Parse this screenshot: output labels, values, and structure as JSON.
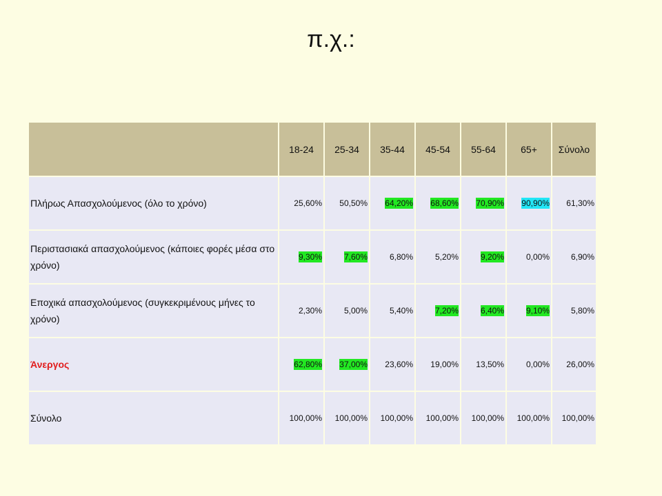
{
  "title": "π.χ.:",
  "colors": {
    "background": "#fdfde3",
    "header": "#c8bf99",
    "row": "#e8e8f4",
    "highlight_green": "#22e822",
    "highlight_cyan": "#22e6f6",
    "label_red": "#e11d1d"
  },
  "table": {
    "headers": [
      "",
      "18-24",
      "25-34",
      "35-44",
      "45-54",
      "55-64",
      "65+",
      "Σύνολο"
    ],
    "rows": [
      {
        "label": "Πλήρως Απασχολούμενος  (όλο το χρόνο)",
        "values": [
          "25,60%",
          "50,50%",
          "64,20%",
          "68,60%",
          "70,90%",
          "90,90%",
          "61,30%"
        ],
        "highlights": [
          "",
          "",
          "green",
          "green",
          "green",
          "cyan",
          ""
        ]
      },
      {
        "label": "Περιστασιακά απασχολούμενος (κάποιες φορές μέσα στο χρόνο)",
        "values": [
          "9,30%",
          "7,60%",
          "6,80%",
          "5,20%",
          "9,20%",
          "0,00%",
          "6,90%"
        ],
        "highlights": [
          "green",
          "green",
          "",
          "",
          "green",
          "",
          ""
        ]
      },
      {
        "label": "Εποχικά απασχολούμενος (συγκεκριμένους μήνες το χρόνο)",
        "values": [
          "2,30%",
          "5,00%",
          "5,40%",
          "7,20%",
          "6,40%",
          "9,10%",
          "5,80%"
        ],
        "highlights": [
          "",
          "",
          "",
          "green",
          "green",
          "green",
          ""
        ]
      },
      {
        "label": "Άνεργος",
        "label_color": "red",
        "values": [
          "62,80%",
          "37,00%",
          "23,60%",
          "19,00%",
          "13,50%",
          "0,00%",
          "26,00%"
        ],
        "highlights": [
          "green",
          "green",
          "",
          "",
          "",
          "",
          ""
        ]
      },
      {
        "label": "Σύνολο",
        "values": [
          "100,00%",
          "100,00%",
          "100,00%",
          "100,00%",
          "100,00%",
          "100,00%",
          "100,00%"
        ],
        "highlights": [
          "",
          "",
          "",
          "",
          "",
          "",
          ""
        ]
      }
    ]
  }
}
